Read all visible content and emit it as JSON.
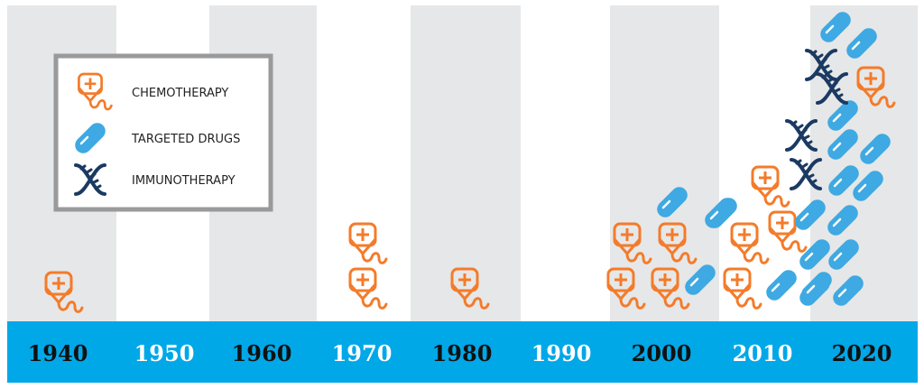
{
  "colors": {
    "band": "#e6e7e8",
    "axis_bar": "#00a8e8",
    "chemotherapy": "#f47b2a",
    "targeted_drugs": "#3ea9e2",
    "immunotherapy": "#1a3a62",
    "year_dark": "#111111",
    "year_light": "#ffffff",
    "legend_border": "#9a9a9a"
  },
  "legend": {
    "items": [
      {
        "label": "CHEMOTHERAPY",
        "icon": "iv-bag-icon",
        "series": "chemotherapy"
      },
      {
        "label": "TARGETED DRUGS",
        "icon": "pill-capsule-icon",
        "series": "targeted_drugs"
      },
      {
        "label": "IMMUNOTHERAPY",
        "icon": "dna-helix-icon",
        "series": "immunotherapy"
      }
    ]
  },
  "chart_data": {
    "type": "pictograph",
    "categories": [
      "1940",
      "1950",
      "1960",
      "1970",
      "1980",
      "1990",
      "2000",
      "2010",
      "2020"
    ],
    "series": [
      {
        "name": "CHEMOTHERAPY",
        "key": "chemotherapy",
        "values": [
          1,
          0,
          0,
          2,
          1,
          0,
          4,
          4,
          1
        ]
      },
      {
        "name": "TARGETED DRUGS",
        "key": "targeted_drugs",
        "values": [
          0,
          0,
          0,
          0,
          0,
          0,
          3,
          2,
          14
        ]
      },
      {
        "name": "IMMUNOTHERAPY",
        "key": "immunotherapy",
        "values": [
          0,
          0,
          0,
          0,
          0,
          0,
          0,
          0,
          4
        ]
      }
    ],
    "legend_position": "top-left"
  }
}
